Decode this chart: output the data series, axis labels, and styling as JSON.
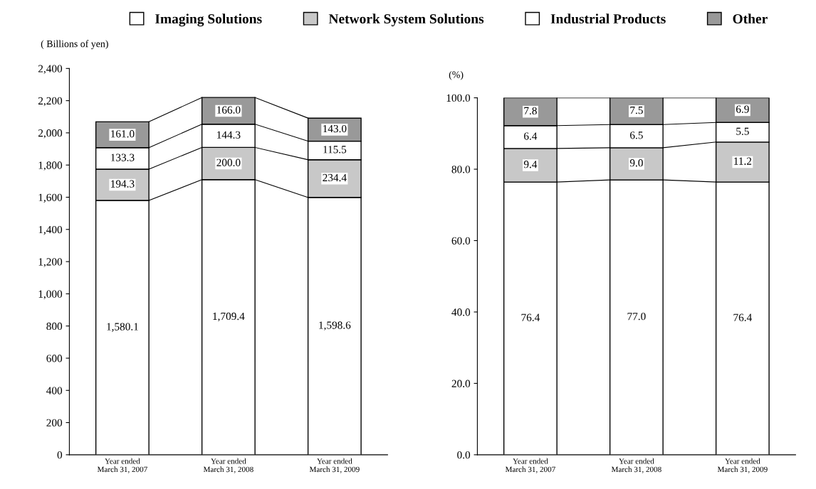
{
  "chart_data": [
    {
      "type": "bar",
      "stacked": true,
      "ylabel": "( Billions of yen)",
      "legend": "top",
      "grid": false,
      "categories": [
        "Year ended\nMarch 31, 2007",
        "Year ended\nMarch 31, 2008",
        "Year ended\nMarch 31, 2009"
      ],
      "series": [
        {
          "name": "Imaging Solutions",
          "color": "#ffffff",
          "values": [
            1580.1,
            1709.4,
            1598.6
          ],
          "value_labels": [
            "1,580.1",
            "1,709.4",
            "1,598.6"
          ]
        },
        {
          "name": "Network System Solutions",
          "color": "#c8c8c8",
          "values": [
            194.3,
            200.0,
            234.4
          ],
          "value_labels": [
            "194.3",
            "200.0",
            "234.4"
          ]
        },
        {
          "name": "Industrial Products",
          "color": "#ffffff",
          "values": [
            133.3,
            144.3,
            115.5
          ],
          "value_labels": [
            "133.3",
            "144.3",
            "115.5"
          ]
        },
        {
          "name": "Other",
          "color": "#999999",
          "values": [
            161.0,
            166.0,
            143.0
          ],
          "value_labels": [
            "161.0",
            "166.0",
            "143.0"
          ]
        }
      ],
      "ylim": [
        0,
        2400
      ],
      "yticks": [
        0,
        200,
        400,
        600,
        800,
        {
          "value": 1000,
          "label": "1,000"
        },
        {
          "value": 1200,
          "label": "1,200"
        },
        {
          "value": 1400,
          "label": "1,400"
        },
        {
          "value": 1600,
          "label": "1,600"
        },
        {
          "value": 1800,
          "label": "1,800"
        },
        {
          "value": 2000,
          "label": "2,000"
        },
        {
          "value": 2200,
          "label": "2,200"
        },
        {
          "value": 2400,
          "label": "2,400"
        }
      ]
    },
    {
      "type": "bar",
      "stacked": true,
      "ylabel": "(%)",
      "grid": false,
      "categories": [
        "Year ended\nMarch 31, 2007",
        "Year ended\nMarch 31, 2008",
        "Year ended\nMarch 31, 2009"
      ],
      "series": [
        {
          "color": "#ffffff",
          "values": [
            76.4,
            77.0,
            76.4
          ],
          "value_labels": [
            "76.4",
            "77.0",
            "76.4"
          ]
        },
        {
          "color": "#c8c8c8",
          "values": [
            9.4,
            9.0,
            11.2
          ],
          "value_labels": [
            "9.4",
            "9.0",
            "11.2"
          ]
        },
        {
          "color": "#ffffff",
          "values": [
            6.4,
            6.5,
            5.5
          ],
          "value_labels": [
            "6.4",
            "6.5",
            "5.5"
          ]
        },
        {
          "color": "#999999",
          "values": [
            7.8,
            7.5,
            6.9
          ],
          "value_labels": [
            "7.8",
            "7.5",
            "6.9"
          ]
        }
      ],
      "ylim": [
        0,
        100
      ],
      "yticks": [
        {
          "value": 0,
          "label": "0.0"
        },
        {
          "value": 20,
          "label": "20.0"
        },
        {
          "value": 40,
          "label": "40.0"
        },
        {
          "value": 60,
          "label": "60.0"
        },
        {
          "value": 80,
          "label": "80.0"
        },
        {
          "value": 100,
          "label": "100.0"
        }
      ]
    }
  ]
}
